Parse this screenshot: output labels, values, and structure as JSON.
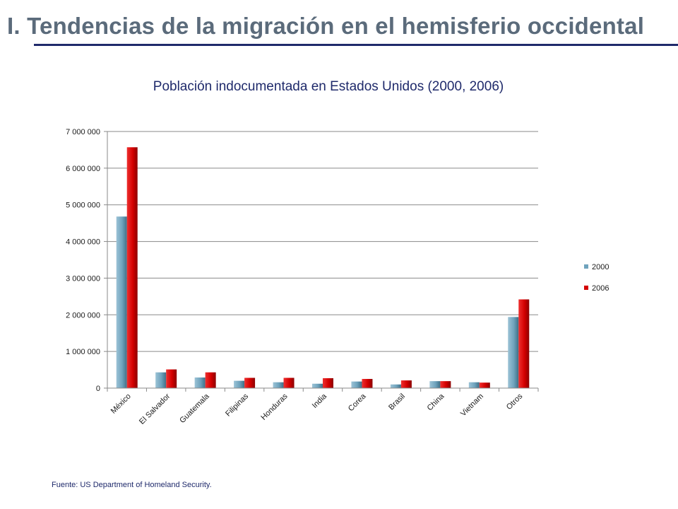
{
  "slide": {
    "title": "I. Tendencias  de la migración en el hemisferio occidental",
    "source": "Fuente: US Department of Homeland Security."
  },
  "colors": {
    "title": "#5b6b7b",
    "accent": "#1f2a6b",
    "series_2000": "#6fa3bd",
    "series_2006": "#d40000"
  },
  "chart_data": {
    "type": "bar",
    "title": "Población indocumentada en Estados Unidos (2000, 2006)",
    "xlabel": "",
    "ylabel": "",
    "categories": [
      "México",
      "El Salvador",
      "Guatemala",
      "Filipinas",
      "Honduras",
      "India",
      "Corea",
      "Brasil",
      "China",
      "Vietnam",
      "Otros"
    ],
    "series": [
      {
        "name": "2000",
        "values": [
          4680000,
          430000,
          290000,
          200000,
          160000,
          120000,
          180000,
          100000,
          190000,
          160000,
          1940000
        ]
      },
      {
        "name": "2006",
        "values": [
          6570000,
          510000,
          430000,
          280000,
          280000,
          270000,
          250000,
          210000,
          190000,
          150000,
          2420000
        ]
      }
    ],
    "ylim": [
      0,
      7000000
    ],
    "yticks": [
      0,
      1000000,
      2000000,
      3000000,
      4000000,
      5000000,
      6000000,
      7000000
    ],
    "ytick_labels": [
      "0",
      "1 000 000",
      "2 000 000",
      "3 000 000",
      "4 000 000",
      "5 000 000",
      "6 000 000",
      "7 000 000"
    ],
    "grid": true,
    "legend": "right"
  }
}
